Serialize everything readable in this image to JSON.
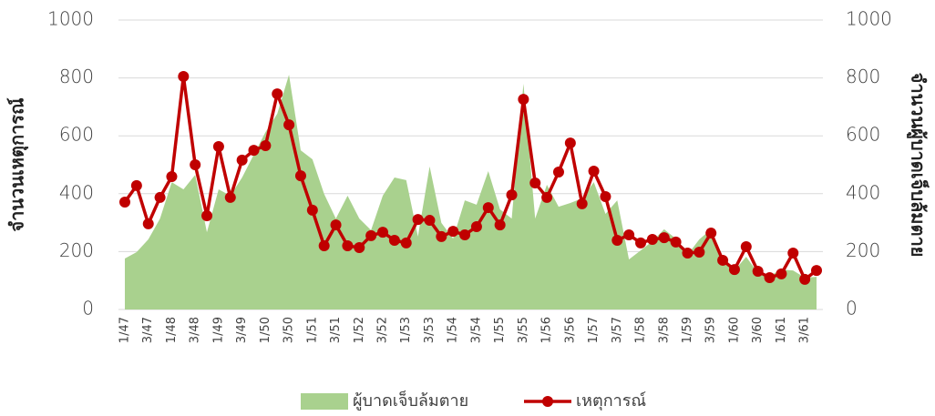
{
  "chart_data": {
    "type": "line-area",
    "ylabel": "จำนวนเหตุการณ์",
    "y2label": "จำนวนผู้บาดเจ็บล้มตาย",
    "categories": [
      "1/47",
      null,
      "3/47",
      null,
      "1/48",
      null,
      "3/48",
      null,
      "1/49",
      null,
      "3/49",
      null,
      "1/50",
      null,
      "3/50",
      null,
      "1/51",
      null,
      "3/51",
      null,
      "1/52",
      null,
      "3/52",
      null,
      "1/53",
      null,
      "3/53",
      null,
      "1/54",
      null,
      "3/54",
      null,
      "1/55",
      null,
      "3/55",
      null,
      "1/56",
      null,
      "3/56",
      null,
      "1/57",
      null,
      "3/57",
      null,
      "1/58",
      null,
      "3/58",
      null,
      "1/59",
      null,
      "3/59",
      null,
      "1/60",
      null,
      "3/60",
      null,
      "1/61",
      null,
      "3/61",
      null
    ],
    "series": [
      {
        "name": "ผู้บาดเจ็บล้มตาย",
        "type": "area",
        "axis": "y2",
        "color": "#a9d18e",
        "values": [
          176,
          198,
          242,
          314,
          440,
          415,
          465,
          267,
          415,
          393,
          456,
          535,
          613,
          676,
          811,
          550,
          519,
          399,
          314,
          393,
          314,
          274,
          393,
          456,
          447,
          252,
          494,
          299,
          245,
          377,
          362,
          478,
          346,
          314,
          780,
          314,
          431,
          355,
          368,
          384,
          440,
          330,
          377,
          173,
          204,
          236,
          277,
          245,
          189,
          242,
          277,
          173,
          135,
          182,
          126,
          116,
          138,
          135,
          110,
          113
        ]
      },
      {
        "name": "เหตุการณ์",
        "type": "line",
        "color": "#c00000",
        "values": [
          371,
          428,
          296,
          387,
          459,
          805,
          500,
          324,
          563,
          387,
          516,
          550,
          566,
          745,
          638,
          462,
          343,
          220,
          292,
          220,
          214,
          255,
          267,
          239,
          230,
          311,
          308,
          252,
          270,
          258,
          286,
          352,
          292,
          396,
          726,
          437,
          387,
          475,
          575,
          365,
          478,
          390,
          239,
          258,
          230,
          242,
          248,
          233,
          195,
          198,
          264,
          170,
          138,
          217,
          132,
          110,
          123,
          195,
          104,
          135
        ]
      }
    ],
    "ylim": [
      0,
      1000
    ],
    "yticks": [
      0,
      200,
      400,
      600,
      800,
      1000
    ],
    "y2lim": [
      0,
      1000
    ],
    "y2ticks": [
      0,
      200,
      400,
      600,
      800,
      1000
    ],
    "grid": true,
    "legend": "bottom"
  }
}
